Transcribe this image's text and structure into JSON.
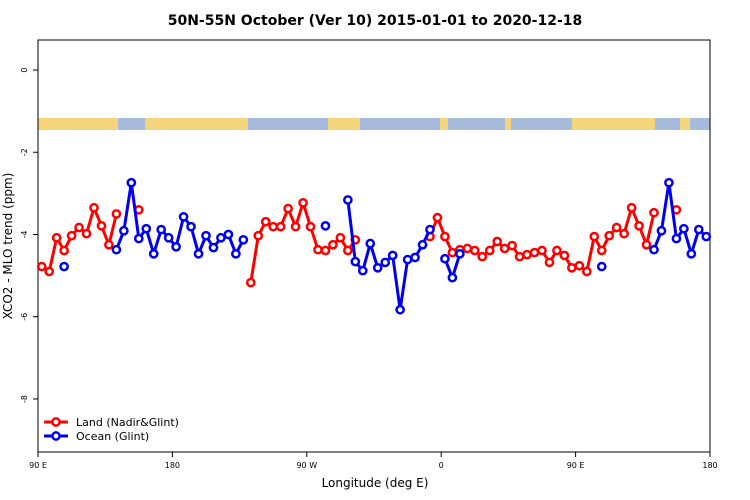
{
  "chart_data": {
    "type": "line",
    "title": "50N-55N October (Ver 10)   2015-01-01 to 2020-12-18",
    "x_label": "Longitude (deg E)",
    "y_label": "XCO2 - MLO trend (ppm)",
    "x": [
      92.5,
      97.5,
      102.5,
      107.5,
      112.5,
      117.5,
      122.5,
      127.5,
      132.5,
      137.5,
      142.5,
      147.5,
      152.5,
      157.5,
      162.5,
      167.5,
      172.5,
      177.5,
      182.5,
      187.5,
      192.5,
      197.5,
      202.5,
      207.5,
      212.5,
      217.5,
      222.5,
      227.5,
      232.5,
      237.5,
      242.5,
      247.5,
      252.5,
      257.5,
      262.5,
      267.5,
      272.5,
      277.5,
      282.5,
      287.5,
      292.5,
      297.5,
      302.5,
      307.5,
      312.5,
      317.5,
      322.5,
      327.5,
      332.5,
      337.5,
      342.5,
      347.5,
      352.5,
      357.5,
      362.5,
      367.5,
      372.5,
      377.5,
      382.5,
      387.5,
      392.5,
      397.5,
      402.5,
      407.5,
      412.5,
      417.5,
      422.5,
      427.5,
      432.5,
      437.5,
      442.5,
      447.5,
      452.5,
      457.5,
      462.5,
      467.5,
      472.5,
      477.5,
      482.5,
      487.5,
      492.5,
      497.5,
      502.5,
      507.5,
      512.5,
      517.5,
      522.5,
      527.5,
      532.5,
      537.5
    ],
    "series": [
      {
        "name": "Land (Nadir&Glint)",
        "color": "#ff0000",
        "values": [
          -4.78,
          -4.9,
          -4.08,
          -4.39,
          -4.03,
          -3.83,
          -3.98,
          -3.35,
          -3.79,
          -4.25,
          -3.5,
          null,
          null,
          -3.4,
          null,
          null,
          null,
          null,
          null,
          null,
          null,
          null,
          null,
          null,
          null,
          null,
          null,
          null,
          -5.17,
          -4.03,
          -3.69,
          -3.81,
          -3.81,
          -3.37,
          -3.81,
          -3.23,
          -3.81,
          -4.37,
          -4.39,
          -4.25,
          -4.08,
          -4.39,
          -4.13,
          null,
          null,
          null,
          null,
          null,
          null,
          null,
          null,
          null,
          -4.05,
          -3.59,
          -4.05,
          -4.44,
          -4.37,
          -4.34,
          -4.39,
          -4.54,
          -4.39,
          -4.17,
          -4.34,
          -4.27,
          -4.54,
          -4.49,
          -4.44,
          -4.39,
          -4.68,
          -4.39,
          -4.51,
          -4.81,
          -4.76,
          -4.9,
          -4.05,
          -4.39,
          -4.03,
          -3.83,
          -3.98,
          -3.35,
          -3.79,
          -4.25,
          -3.47,
          null,
          null,
          -3.4,
          null,
          null,
          null,
          null
        ]
      },
      {
        "name": "Ocean (Glint)",
        "color": "#0000ee",
        "values": [
          null,
          null,
          null,
          -4.78,
          null,
          null,
          null,
          null,
          null,
          null,
          -4.37,
          -3.91,
          -2.74,
          -4.1,
          -3.86,
          -4.47,
          -3.88,
          -4.08,
          -4.3,
          -3.57,
          -3.81,
          -4.47,
          -4.03,
          -4.32,
          -4.08,
          -4.0,
          -4.47,
          -4.13,
          null,
          null,
          null,
          null,
          null,
          null,
          null,
          null,
          null,
          null,
          -3.79,
          null,
          null,
          -3.16,
          -4.66,
          -4.88,
          -4.22,
          -4.81,
          -4.68,
          -4.51,
          -5.83,
          -4.61,
          -4.56,
          -4.25,
          -3.88,
          null,
          -4.59,
          -5.05,
          -4.47,
          null,
          null,
          null,
          null,
          null,
          null,
          null,
          null,
          null,
          null,
          null,
          null,
          null,
          null,
          null,
          null,
          null,
          null,
          -4.78,
          null,
          null,
          null,
          null,
          null,
          null,
          -4.37,
          -3.91,
          -2.74,
          -4.1,
          -3.86,
          -4.47,
          -3.88,
          -4.05
        ]
      }
    ],
    "xlim": [
      90,
      540
    ],
    "xticks": [
      {
        "value": 90,
        "label": "90 E"
      },
      {
        "value": 180,
        "label": "180"
      },
      {
        "value": 270,
        "label": "90 W"
      },
      {
        "value": 360,
        "label": "0"
      },
      {
        "value": 450,
        "label": "90 E"
      },
      {
        "value": 540,
        "label": "180"
      }
    ],
    "ylim": [
      -9.29,
      0.73
    ],
    "yticks": [
      0,
      -2,
      -4,
      -6,
      -8
    ],
    "legend": "bottom-left"
  }
}
